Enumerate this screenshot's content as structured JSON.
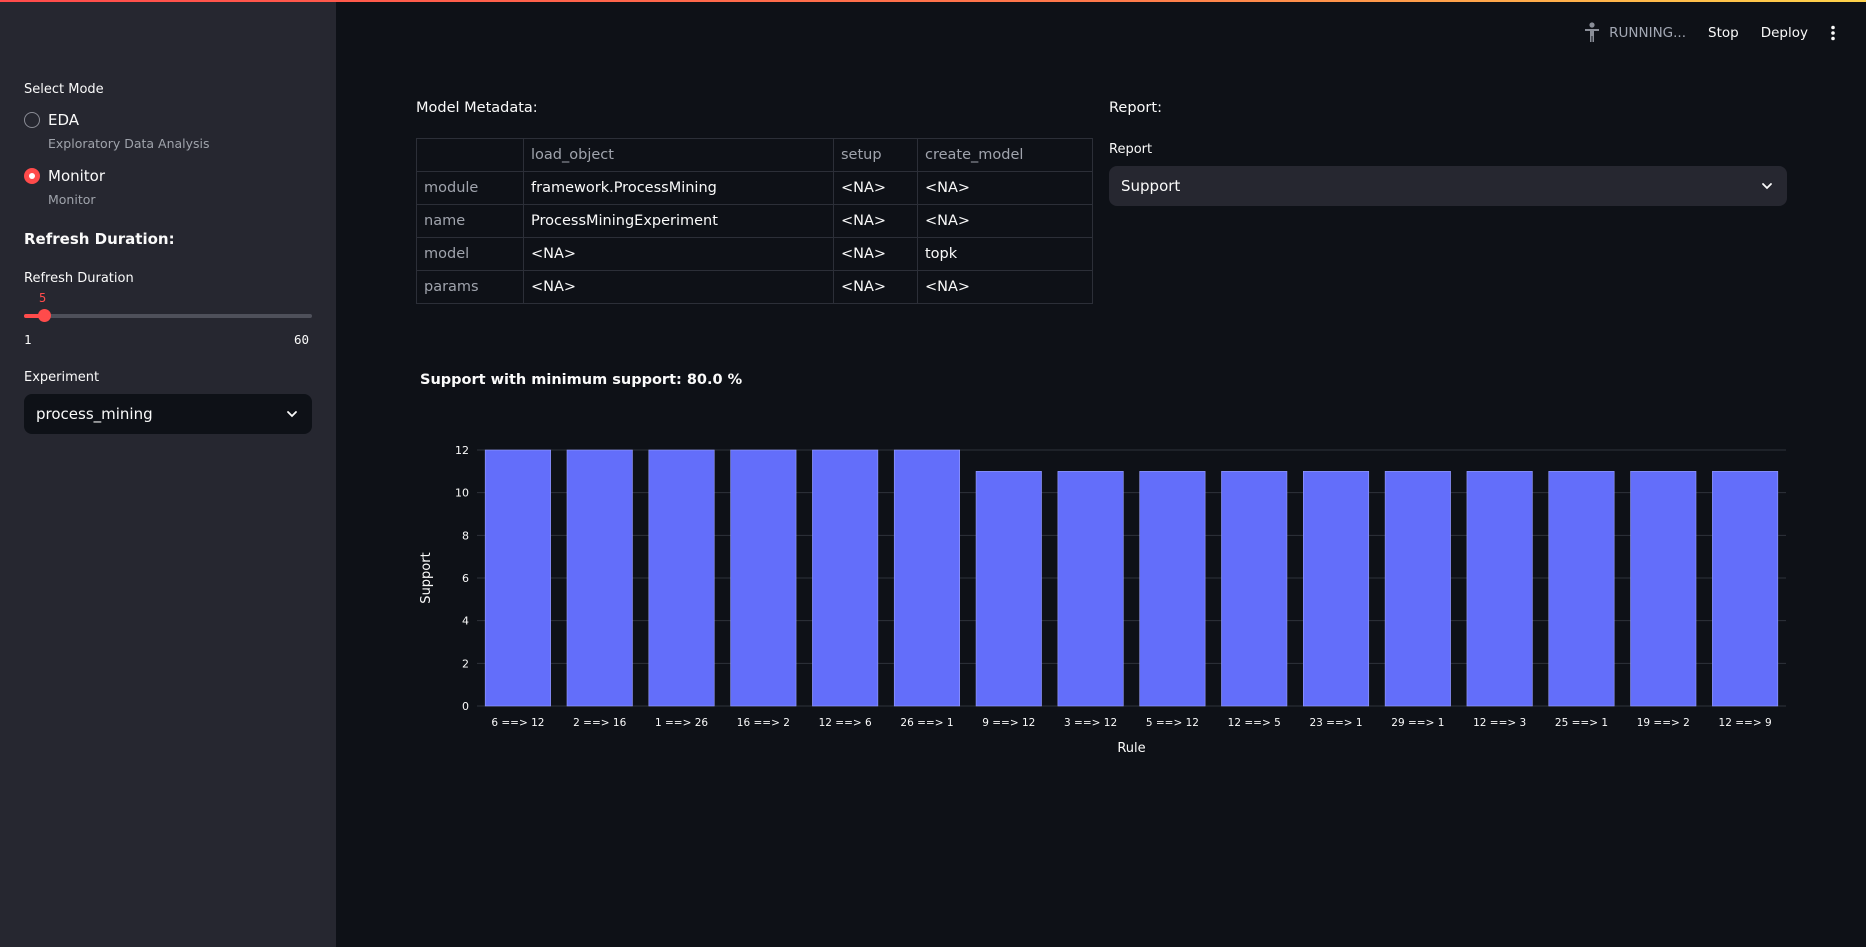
{
  "topbar": {
    "status": "RUNNING...",
    "stop_label": "Stop",
    "deploy_label": "Deploy",
    "status_icon": "running-figure-icon",
    "menu_icon": "kebab-menu-icon"
  },
  "sidebar": {
    "mode_label": "Select Mode",
    "modes": [
      {
        "label": "EDA",
        "caption": "Exploratory Data Analysis",
        "selected": false
      },
      {
        "label": "Monitor",
        "caption": "Monitor",
        "selected": true
      }
    ],
    "refresh_heading": "Refresh Duration:",
    "slider": {
      "label": "Refresh Duration",
      "value": "5",
      "min": "1",
      "max": "60"
    },
    "experiment": {
      "label": "Experiment",
      "value": "process_mining"
    }
  },
  "metadata": {
    "title": "Model Metadata:",
    "columns": [
      "",
      "load_object",
      "setup",
      "create_model"
    ],
    "rows": [
      [
        "module",
        "framework.ProcessMining",
        "<NA>",
        "<NA>"
      ],
      [
        "name",
        "ProcessMiningExperiment",
        "<NA>",
        "<NA>"
      ],
      [
        "model",
        "<NA>",
        "<NA>",
        "topk"
      ],
      [
        "params",
        "<NA>",
        "<NA>",
        "<NA>"
      ]
    ]
  },
  "report": {
    "title": "Report:",
    "label": "Report",
    "value": "Support"
  },
  "colors": {
    "accent": "#ff4b4b",
    "bar": "#636efa",
    "background": "#0e1117",
    "sidebar": "#262730"
  },
  "chart_data": {
    "type": "bar",
    "title": "Support with minimum support: 80.0 %",
    "xlabel": "Rule",
    "ylabel": "Support",
    "ylim": [
      0,
      12
    ],
    "yticks": [
      0,
      2,
      4,
      6,
      8,
      10,
      12
    ],
    "grid": true,
    "categories": [
      "6 ==> 12",
      "2 ==> 16",
      "1 ==> 26",
      "16 ==> 2",
      "12 ==> 6",
      "26 ==> 1",
      "9 ==> 12",
      "3 ==> 12",
      "5 ==> 12",
      "12 ==> 5",
      "23 ==> 1",
      "29 ==> 1",
      "12 ==> 3",
      "25 ==> 1",
      "19 ==> 2",
      "12 ==> 9"
    ],
    "values": [
      12,
      12,
      12,
      12,
      12,
      12,
      11,
      11,
      11,
      11,
      11,
      11,
      11,
      11,
      11,
      11
    ]
  }
}
